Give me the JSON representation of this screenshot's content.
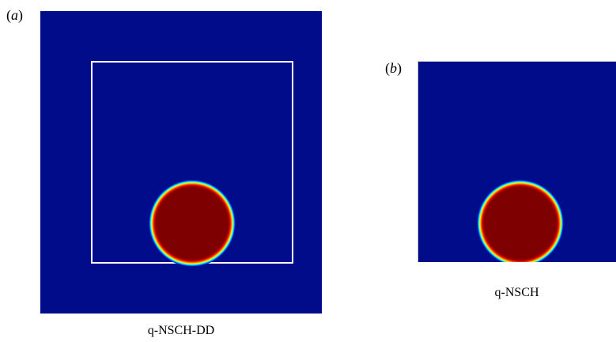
{
  "panels": [
    {
      "label_open": "(",
      "label_letter": "a",
      "label_close": ")",
      "caption": "q-NSCH-DD"
    },
    {
      "label_open": "(",
      "label_letter": "b",
      "label_close": ")",
      "caption": "q-NSCH"
    }
  ],
  "colors": {
    "background_phase": "#000c8a",
    "droplet_phase": "#7f0000",
    "subdomain_outline": "#ffffff"
  }
}
